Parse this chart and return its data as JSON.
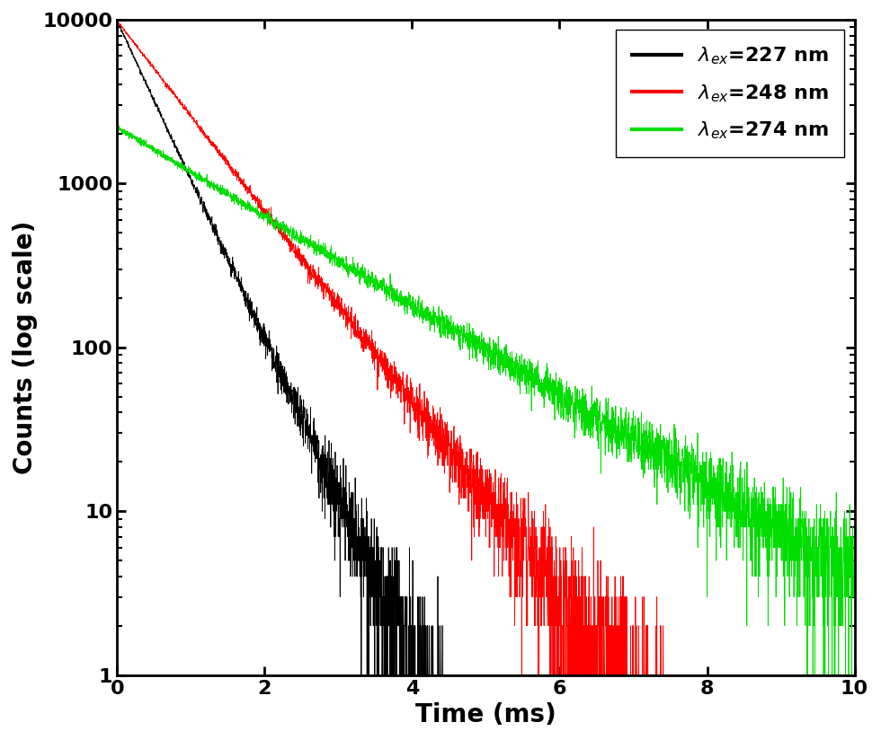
{
  "title": "",
  "xlabel": "Time (ms)",
  "ylabel": "Counts (log scale)",
  "xlim": [
    0,
    10
  ],
  "ylim": [
    1,
    10000
  ],
  "series": [
    {
      "label": "$\\lambda_{ex}$=227 nm",
      "color": "#000000",
      "A": 9800,
      "tau": 0.45,
      "seed": 42
    },
    {
      "label": "$\\lambda_{ex}$=248 nm",
      "color": "#ff0000",
      "A": 9800,
      "tau": 0.75,
      "seed": 123
    },
    {
      "label": "$\\lambda_{ex}$=274 nm",
      "color": "#00dd00",
      "A": 2200,
      "tau": 1.6,
      "seed": 7
    }
  ],
  "n_points": 4000,
  "legend_fontsize": 16,
  "axis_label_fontsize": 20,
  "tick_fontsize": 16,
  "line_width": 0.6,
  "background_color": "#ffffff"
}
